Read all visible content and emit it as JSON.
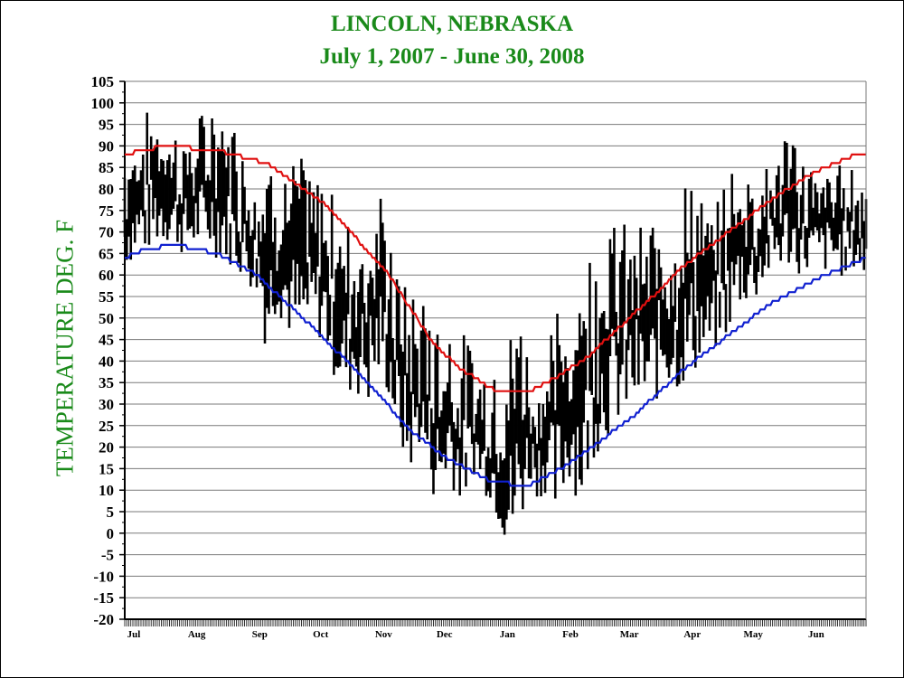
{
  "chart_data": {
    "type": "line",
    "title": "LINCOLN, NEBRASKA",
    "subtitle": "July 1, 2007 - June 30,  2008",
    "ylabel": "TEMPERATURE DEG. F",
    "xlabel": "",
    "ylim": [
      -20,
      105
    ],
    "y_ticks": [
      105,
      100,
      95,
      90,
      85,
      80,
      75,
      70,
      65,
      60,
      55,
      50,
      45,
      40,
      35,
      30,
      25,
      20,
      15,
      10,
      5,
      0,
      -5,
      -10,
      -15,
      -20
    ],
    "x_month_labels": [
      "Jul",
      "Aug",
      "Sep",
      "Oct",
      "Nov",
      "Dec",
      "Jan",
      "Feb",
      "Mar",
      "Apr",
      "May",
      "Jun"
    ],
    "days_in_period": 366,
    "grid": true,
    "colors": {
      "title": "#1a8a1a",
      "normal_high": "#e01010",
      "normal_low": "#1020d0",
      "observed": "#000000"
    },
    "series": [
      {
        "values_kind": "normal_high",
        "x_day": [
          0,
          20,
          45,
          70,
          100,
          130,
          152,
          166,
          183,
          199,
          212,
          228,
          244,
          260,
          275,
          300,
          320,
          340,
          360,
          365
        ],
        "y": [
          88,
          90,
          89,
          86,
          76,
          60,
          44,
          38,
          33,
          33,
          36,
          41,
          48,
          55,
          62,
          71,
          78,
          84,
          88,
          88
        ]
      },
      {
        "values_kind": "normal_low",
        "x_day": [
          0,
          10,
          25,
          45,
          65,
          90,
          120,
          140,
          160,
          180,
          198,
          215,
          230,
          250,
          275,
          300,
          320,
          345,
          365
        ],
        "y": [
          64,
          66,
          67,
          65,
          60,
          49,
          35,
          24,
          17,
          12,
          11,
          15,
          20,
          27,
          38,
          47,
          54,
          60,
          64
        ]
      },
      {
        "values_kind": "observed_daily_range",
        "x_day": [
          0,
          8,
          15,
          23,
          30,
          38,
          45,
          53,
          60,
          66,
          70,
          75,
          80,
          87,
          93,
          100,
          107,
          113,
          120,
          127,
          133,
          140,
          145,
          150,
          155,
          160,
          163,
          167,
          172,
          176,
          180,
          185,
          189,
          193,
          197,
          200,
          204,
          208,
          212,
          216,
          220,
          225,
          230,
          236,
          243,
          250,
          258,
          266,
          273,
          280,
          287,
          295,
          303,
          311,
          318,
          326,
          334,
          341,
          348,
          355,
          360,
          365
        ],
        "high": [
          90,
          96,
          100,
          94,
          92,
          97,
          100,
          95,
          88,
          86,
          90,
          84,
          84,
          87,
          80,
          83,
          74,
          72,
          76,
          78,
          60,
          56,
          52,
          54,
          48,
          50,
          44,
          46,
          40,
          38,
          35,
          42,
          40,
          60,
          46,
          36,
          38,
          40,
          52,
          48,
          54,
          66,
          62,
          75,
          70,
          74,
          68,
          80,
          78,
          83,
          72,
          80,
          87,
          84,
          86,
          92,
          87,
          83,
          86,
          85,
          84,
          82
        ],
        "low": [
          60,
          62,
          64,
          66,
          62,
          64,
          62,
          60,
          56,
          52,
          38,
          50,
          44,
          38,
          46,
          38,
          28,
          30,
          26,
          34,
          22,
          10,
          18,
          8,
          2,
          12,
          6,
          4,
          12,
          8,
          6,
          -2,
          -8,
          -10,
          4,
          10,
          6,
          8,
          -3,
          6,
          10,
          0,
          14,
          18,
          22,
          24,
          26,
          30,
          30,
          34,
          38,
          42,
          50,
          52,
          58,
          60,
          58,
          60,
          58,
          58,
          60,
          56
        ]
      }
    ]
  }
}
